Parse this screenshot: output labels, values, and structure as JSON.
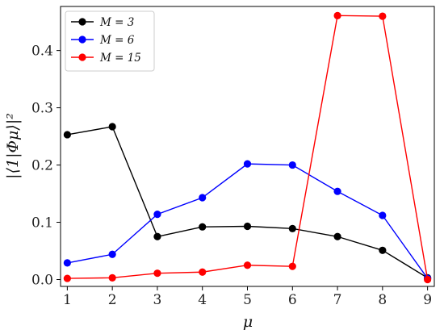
{
  "chart_data": {
    "type": "line",
    "title": "",
    "xlabel": "μ",
    "ylabel": "|⟨1|Φμ⟩|²",
    "x": [
      1,
      2,
      3,
      4,
      5,
      6,
      7,
      8,
      9
    ],
    "xticks": [
      "1",
      "2",
      "3",
      "4",
      "5",
      "6",
      "7",
      "8",
      "9"
    ],
    "yticks": [
      "0.0",
      "0.1",
      "0.2",
      "0.3",
      "0.4"
    ],
    "xlim": [
      0.85,
      9.15
    ],
    "ylim": [
      -0.012,
      0.477
    ],
    "grid": false,
    "legend_position": "top-left",
    "series": [
      {
        "name": "M = 3",
        "color": "#000000",
        "values": [
          0.253,
          0.267,
          0.075,
          0.092,
          0.093,
          0.089,
          0.075,
          0.051,
          0.003
        ]
      },
      {
        "name": "M = 6",
        "color": "#0000ff",
        "values": [
          0.029,
          0.044,
          0.114,
          0.143,
          0.202,
          0.2,
          0.154,
          0.112,
          0.002
        ]
      },
      {
        "name": "M = 15",
        "color": "#ff0000",
        "values": [
          0.002,
          0.003,
          0.011,
          0.013,
          0.025,
          0.023,
          0.461,
          0.46,
          0.0
        ]
      }
    ]
  }
}
